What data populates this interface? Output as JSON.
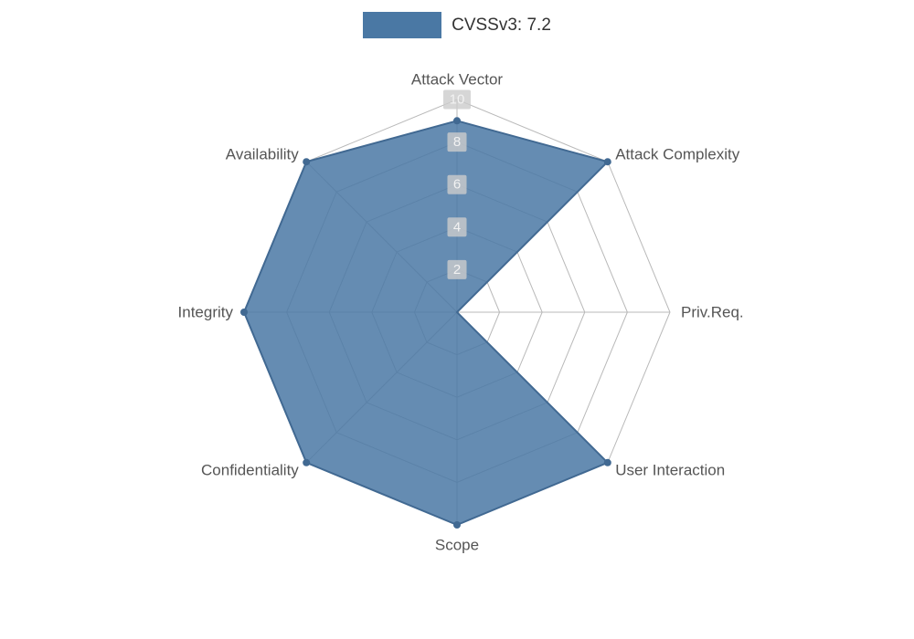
{
  "legend": {
    "label": "CVSSv3: 7.2"
  },
  "chart_data": {
    "type": "radar",
    "title": "CVSSv3: 7.2",
    "legend_position": "top",
    "grid": true,
    "max": 10,
    "ticks": [
      2,
      4,
      6,
      8,
      10
    ],
    "axes": [
      "Attack Vector",
      "Attack Complexity",
      "Priv.Req.",
      "User Interaction",
      "Scope",
      "Confidentiality",
      "Integrity",
      "Availability"
    ],
    "series": [
      {
        "name": "CVSSv3: 7.2",
        "values": [
          9,
          10,
          0,
          10,
          10,
          10,
          10,
          10
        ]
      }
    ],
    "colors": {
      "series_fill": "#4a78a4",
      "series_line": "#416992",
      "grid_line": "#b9b9b9",
      "axis_label": "#555555",
      "tick_label_bg": "#cccccc",
      "tick_label_text": "#f2f2f2",
      "legend_text": "#333333"
    }
  }
}
